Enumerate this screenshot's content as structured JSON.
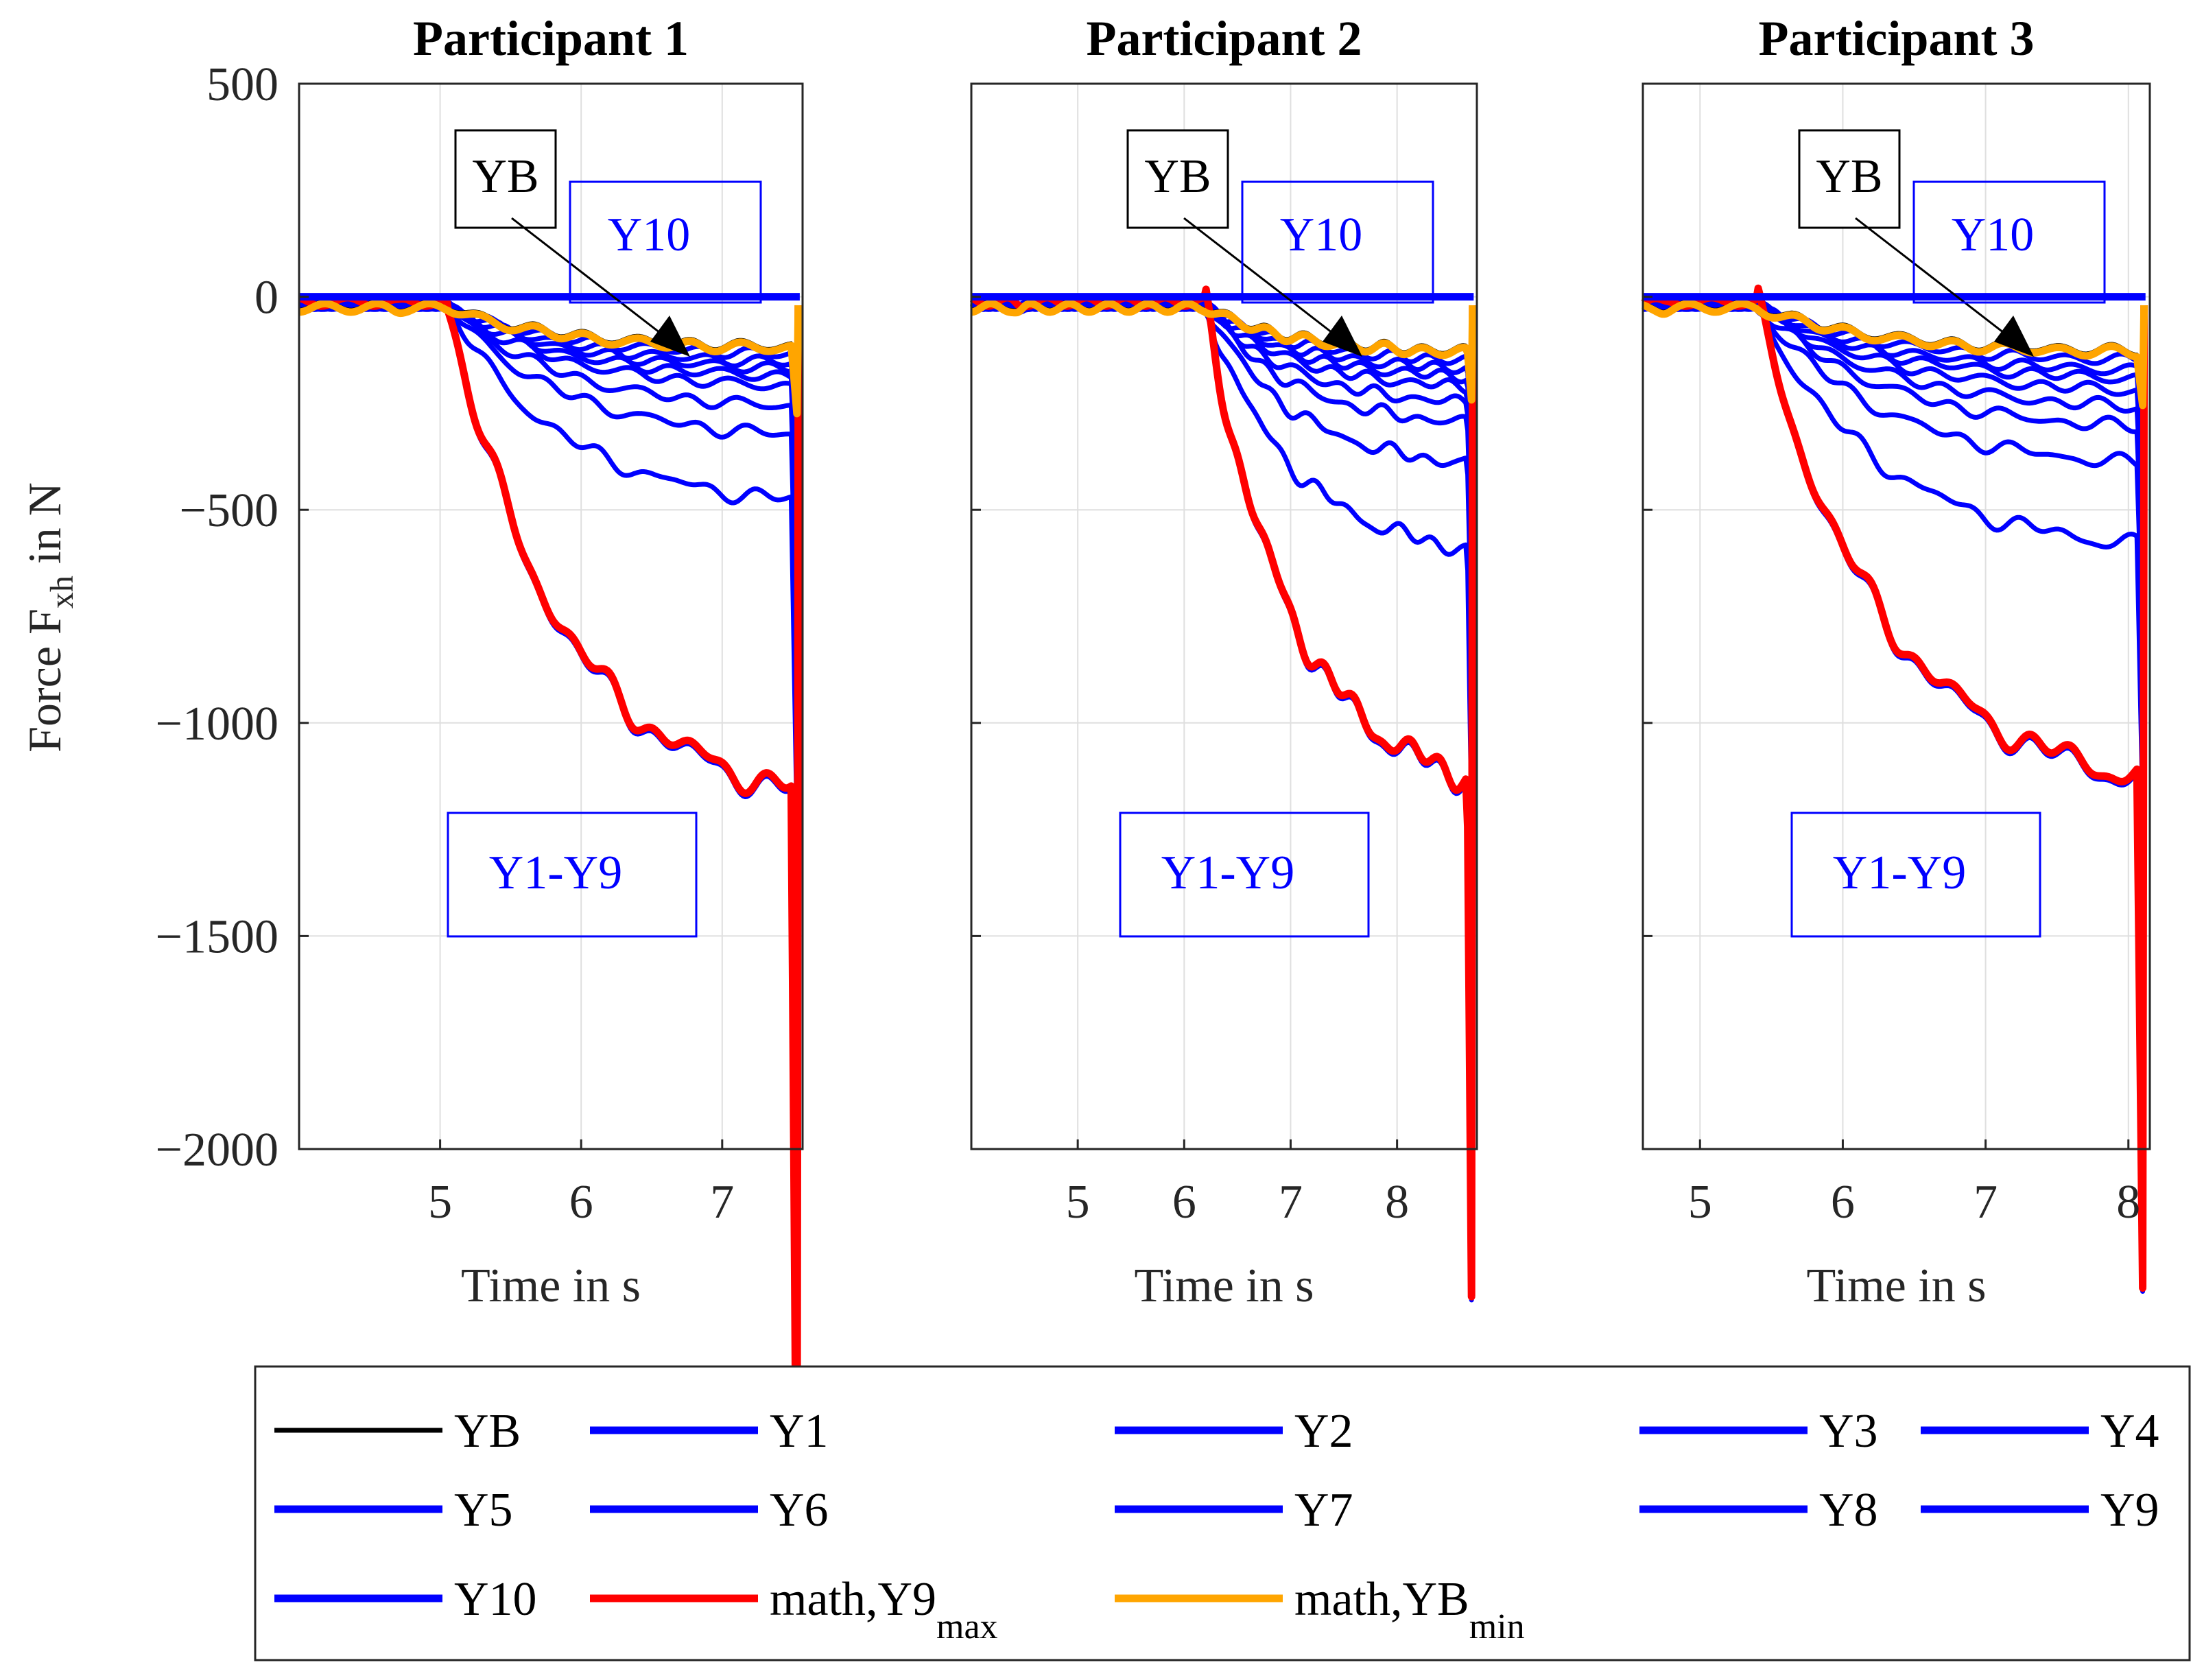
{
  "figure": {
    "ylabel": "Force F",
    "ylabel_sub": "xh",
    "ylabel_suffix": " in N",
    "xlabel": "Time in s"
  },
  "colors": {
    "YB": "#000000",
    "Y": "#0000ff",
    "math_Y9max": "#ff0000",
    "math_YBmin": "#ffa500",
    "axis": "#262626",
    "grid": "#dfdfdf"
  },
  "chart_data": [
    {
      "type": "line",
      "title": "Participant 1",
      "xlim": [
        4.0,
        7.57
      ],
      "xticks": [
        5,
        6,
        7
      ],
      "ylim": [
        -2000,
        500
      ],
      "yticks": [
        500,
        0,
        -500,
        -1000,
        -1500,
        -2000
      ],
      "t_end": 7.53,
      "t_ramp": 5.05,
      "final_drop": 1.6,
      "floor_final": -100,
      "final_values": {
        "Y9": -1200,
        "Y8": -480,
        "Y7": -320,
        "Y6": -250,
        "Y5": -200,
        "Y4": -175,
        "Y3": -155,
        "Y2": -140,
        "Y1": -120,
        "YB": -100
      },
      "bumps": [
        {
          "t": 4.7,
          "h": 0.06
        }
      ],
      "series_names": [
        "YB",
        "Y1",
        "Y2",
        "Y3",
        "Y4",
        "Y5",
        "Y6",
        "Y7",
        "Y8",
        "Y9",
        "Y10",
        "math,Y9max",
        "math,YBmin"
      ],
      "annotations": [
        "YB",
        "Y10",
        "Y1-Y9"
      ]
    },
    {
      "type": "line",
      "title": "Participant 2",
      "xlim": [
        4.0,
        8.75
      ],
      "xticks": [
        5,
        6,
        7,
        8
      ],
      "ylim": [
        -2000,
        500
      ],
      "yticks": [
        500,
        0,
        -500,
        -1000,
        -1500,
        -2000
      ],
      "t_end": 8.7,
      "t_ramp": 6.2,
      "final_drop": 1.05,
      "floor_final": -110,
      "final_values": {
        "Y9": -1170,
        "Y8": -600,
        "Y7": -390,
        "Y6": -290,
        "Y5": -240,
        "Y4": -200,
        "Y3": -175,
        "Y2": -155,
        "Y1": -135,
        "YB": -110
      },
      "bumps": [
        {
          "t": 4.45,
          "h": 0.12
        }
      ],
      "series_names": [
        "YB",
        "Y1",
        "Y2",
        "Y3",
        "Y4",
        "Y5",
        "Y6",
        "Y7",
        "Y8",
        "Y9",
        "Y10",
        "math,Y9max",
        "math,YBmin"
      ],
      "annotations": [
        "YB",
        "Y10",
        "Y1-Y9"
      ]
    },
    {
      "type": "line",
      "title": "Participant 3",
      "xlim": [
        4.6,
        8.15
      ],
      "xticks": [
        5,
        6,
        7,
        8
      ],
      "ylim": [
        -2000,
        500
      ],
      "yticks": [
        500,
        0,
        -500,
        -1000,
        -1500,
        -2000
      ],
      "t_end": 8.1,
      "t_ramp": 5.4,
      "final_drop": 1.05,
      "floor_final": -110,
      "final_values": {
        "Y9": -1170,
        "Y8": -590,
        "Y7": -390,
        "Y6": -300,
        "Y5": -250,
        "Y4": -210,
        "Y3": -180,
        "Y2": -160,
        "Y1": -135,
        "YB": -110
      },
      "bumps": [
        {
          "t": 4.75,
          "h": 0.08
        }
      ],
      "series_names": [
        "YB",
        "Y1",
        "Y2",
        "Y3",
        "Y4",
        "Y5",
        "Y6",
        "Y7",
        "Y8",
        "Y9",
        "Y10",
        "math,Y9max",
        "math,YBmin"
      ],
      "annotations": [
        "YB",
        "Y10",
        "Y1-Y9"
      ]
    }
  ],
  "legend": {
    "items": [
      {
        "label": "YB",
        "color_key": "YB"
      },
      {
        "label": "Y1",
        "color_key": "Y"
      },
      {
        "label": "Y2",
        "color_key": "Y"
      },
      {
        "label": "Y3",
        "color_key": "Y"
      },
      {
        "label": "Y4",
        "color_key": "Y"
      },
      {
        "label": "Y5",
        "color_key": "Y"
      },
      {
        "label": "Y6",
        "color_key": "Y"
      },
      {
        "label": "Y7",
        "color_key": "Y"
      },
      {
        "label": "Y8",
        "color_key": "Y"
      },
      {
        "label": "Y9",
        "color_key": "Y"
      },
      {
        "label": "Y10",
        "color_key": "Y"
      },
      {
        "label": "math,Y9",
        "sub": "max",
        "color_key": "math_Y9max"
      },
      {
        "label": "math,YB",
        "sub": "min",
        "color_key": "math_YBmin"
      }
    ]
  }
}
